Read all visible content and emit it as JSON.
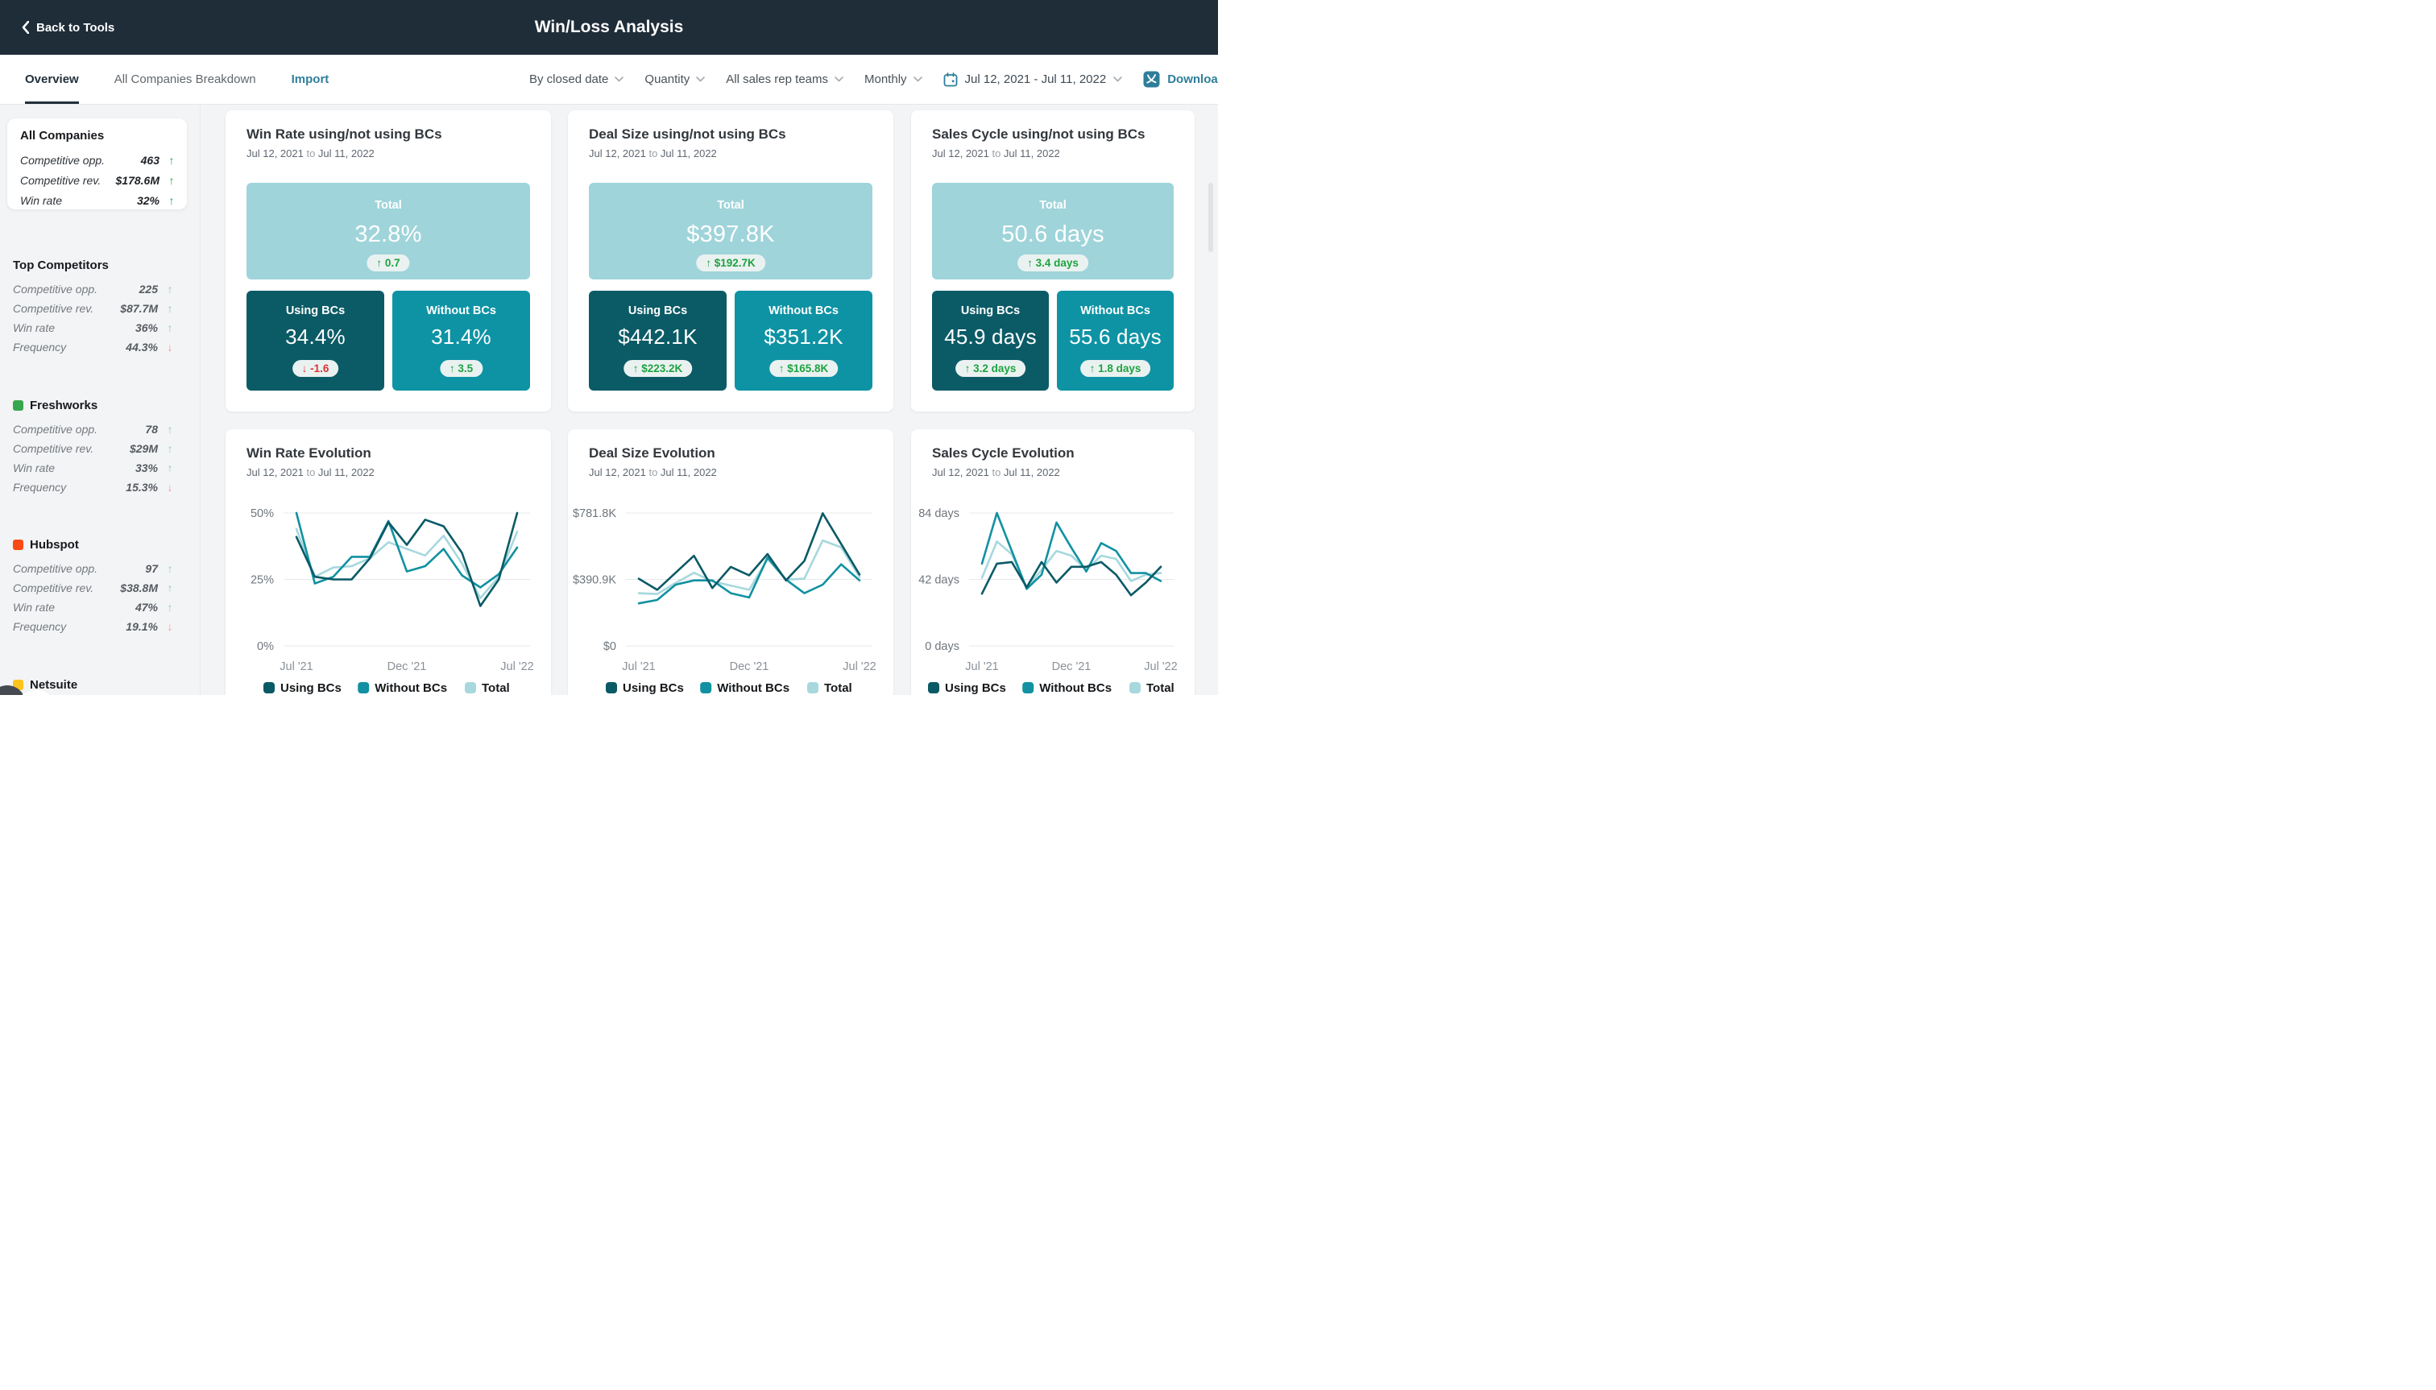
{
  "header": {
    "back_label": "Back to Tools",
    "title": "Win/Loss Analysis"
  },
  "toolbar": {
    "tabs": [
      {
        "label": "Overview",
        "active": true
      },
      {
        "label": "All Companies Breakdown",
        "active": false
      }
    ],
    "import_label": "Import",
    "dropdowns": [
      {
        "label": "By closed date"
      },
      {
        "label": "Quantity"
      },
      {
        "label": "All sales rep teams"
      },
      {
        "label": "Monthly"
      }
    ],
    "date_range": "Jul 12, 2021 - Jul 11, 2022",
    "download_label": "Download"
  },
  "sidebar": {
    "sections": [
      {
        "title": "All Companies",
        "card": true,
        "rows": [
          {
            "label": "Competitive opp.",
            "value": "463",
            "trend": "up",
            "trend_color": "#2aa34c"
          },
          {
            "label": "Competitive rev.",
            "value": "$178.6M",
            "trend": "up",
            "trend_color": "#2aa34c"
          },
          {
            "label": "Win rate",
            "value": "32%",
            "trend": "up",
            "trend_color": "#2aa34c"
          }
        ]
      },
      {
        "title": "Top Competitors",
        "card": false,
        "rows": [
          {
            "label": "Competitive opp.",
            "value": "225",
            "trend": "up",
            "trend_color": "#8ed3a1"
          },
          {
            "label": "Competitive rev.",
            "value": "$87.7M",
            "trend": "up",
            "trend_color": "#8ed3a1"
          },
          {
            "label": "Win rate",
            "value": "36%",
            "trend": "up",
            "trend_color": "#8ed3a1"
          },
          {
            "label": "Frequency",
            "value": "44.3%",
            "trend": "down",
            "trend_color": "#f29b90"
          }
        ]
      },
      {
        "title": "Freshworks",
        "card": false,
        "swatch": "#37a74f",
        "rows": [
          {
            "label": "Competitive opp.",
            "value": "78",
            "trend": "up",
            "trend_color": "#8ed3a1"
          },
          {
            "label": "Competitive rev.",
            "value": "$29M",
            "trend": "up",
            "trend_color": "#8ed3a1"
          },
          {
            "label": "Win rate",
            "value": "33%",
            "trend": "up",
            "trend_color": "#8ed3a1"
          },
          {
            "label": "Frequency",
            "value": "15.3%",
            "trend": "down",
            "trend_color": "#f29b90"
          }
        ]
      },
      {
        "title": "Hubspot",
        "card": false,
        "swatch": "#fb4a16",
        "rows": [
          {
            "label": "Competitive opp.",
            "value": "97",
            "trend": "up",
            "trend_color": "#8ed3a1"
          },
          {
            "label": "Competitive rev.",
            "value": "$38.8M",
            "trend": "up",
            "trend_color": "#8ed3a1"
          },
          {
            "label": "Win rate",
            "value": "47%",
            "trend": "up",
            "trend_color": "#8ed3a1"
          },
          {
            "label": "Frequency",
            "value": "19.1%",
            "trend": "down",
            "trend_color": "#f29b90"
          }
        ]
      },
      {
        "title": "Netsuite",
        "card": false,
        "swatch": "#fcc41b",
        "rows": []
      }
    ]
  },
  "metric_cards": [
    {
      "title": "Win Rate using/not using BCs",
      "range_from": "Jul 12, 2021",
      "range_sep": "to",
      "range_to": "Jul 11, 2022",
      "total": {
        "label": "Total",
        "value": "32.8%",
        "badge": "0.7",
        "dir": "up"
      },
      "using": {
        "label": "Using BCs",
        "value": "34.4%",
        "badge": "-1.6",
        "dir": "down"
      },
      "without": {
        "label": "Without BCs",
        "value": "31.4%",
        "badge": "3.5",
        "dir": "up"
      }
    },
    {
      "title": "Deal Size using/not using BCs",
      "range_from": "Jul 12, 2021",
      "range_sep": "to",
      "range_to": "Jul 11, 2022",
      "total": {
        "label": "Total",
        "value": "$397.8K",
        "badge": "$192.7K",
        "dir": "up"
      },
      "using": {
        "label": "Using BCs",
        "value": "$442.1K",
        "badge": "$223.2K",
        "dir": "up"
      },
      "without": {
        "label": "Without BCs",
        "value": "$351.2K",
        "badge": "$165.8K",
        "dir": "up"
      }
    },
    {
      "title": "Sales Cycle using/not using BCs",
      "range_from": "Jul 12, 2021",
      "range_sep": "to",
      "range_to": "Jul 11, 2022",
      "total": {
        "label": "Total",
        "value": "50.6 days",
        "badge": "3.4 days",
        "dir": "up"
      },
      "using": {
        "label": "Using BCs",
        "value": "45.9 days",
        "badge": "3.2 days",
        "dir": "up"
      },
      "without": {
        "label": "Without BCs",
        "value": "55.6 days",
        "badge": "1.8 days",
        "dir": "up"
      }
    }
  ],
  "chart_data": [
    {
      "type": "line",
      "title": "Win Rate Evolution",
      "range_from": "Jul 12, 2021",
      "range_sep": "to",
      "range_to": "Jul 11, 2022",
      "x_categories": [
        "Jul '21",
        "Aug '21",
        "Sep '21",
        "Oct '21",
        "Nov '21",
        "Dec '21",
        "Jan '22",
        "Feb '22",
        "Mar '22",
        "Apr '22",
        "May '22",
        "Jun '22",
        "Jul '22"
      ],
      "x_tick_labels": [
        "Jul '21",
        "Dec '21",
        "Jul '22"
      ],
      "ylim": [
        0,
        50
      ],
      "grid": true,
      "legend_position": "bottom",
      "y_ticks": [
        {
          "value": 0,
          "label": "0%"
        },
        {
          "value": 25,
          "label": "25%"
        },
        {
          "value": 50,
          "label": "50%"
        }
      ],
      "series": [
        {
          "name": "Using BCs",
          "color": "#0a5a66",
          "values": [
            41,
            26,
            25,
            25,
            33,
            46.5,
            38,
            47.5,
            45,
            35,
            15,
            25,
            50
          ]
        },
        {
          "name": "Without BCs",
          "color": "#1191a1",
          "values": [
            50,
            23.5,
            26,
            33.5,
            33.5,
            47,
            28,
            30,
            36.5,
            26.5,
            22,
            27,
            37
          ]
        },
        {
          "name": "Total",
          "color": "#a7d8de",
          "values": [
            44,
            26,
            29.5,
            30,
            33,
            39,
            36.5,
            34,
            41.5,
            31,
            18,
            26,
            43
          ]
        }
      ]
    },
    {
      "type": "line",
      "title": "Deal Size Evolution",
      "range_from": "Jul 12, 2021",
      "range_sep": "to",
      "range_to": "Jul 11, 2022",
      "x_categories": [
        "Jul '21",
        "Aug '21",
        "Sep '21",
        "Oct '21",
        "Nov '21",
        "Dec '21",
        "Jan '22",
        "Feb '22",
        "Mar '22",
        "Apr '22",
        "May '22",
        "Jun '22",
        "Jul '22"
      ],
      "x_tick_labels": [
        "Jul '21",
        "Dec '21",
        "Jul '22"
      ],
      "ylim": [
        0,
        781.8
      ],
      "grid": true,
      "legend_position": "bottom",
      "y_ticks": [
        {
          "value": 0,
          "label": "$0"
        },
        {
          "value": 390.9,
          "label": "$390.9K"
        },
        {
          "value": 781.8,
          "label": "$781.8K"
        }
      ],
      "unit": "K$",
      "series": [
        {
          "name": "Using BCs",
          "color": "#0a5a66",
          "values": [
            395,
            330,
            430,
            530,
            340,
            465,
            415,
            540,
            385,
            500,
            780,
            600,
            420
          ]
        },
        {
          "name": "Without BCs",
          "color": "#1191a1",
          "values": [
            250,
            270,
            360,
            385,
            385,
            310,
            285,
            520,
            390,
            310,
            360,
            480,
            385
          ]
        },
        {
          "name": "Total",
          "color": "#a7d8de",
          "values": [
            310,
            305,
            370,
            430,
            380,
            355,
            330,
            510,
            390,
            395,
            620,
            580,
            405
          ]
        }
      ]
    },
    {
      "type": "line",
      "title": "Sales Cycle Evolution",
      "range_from": "Jul 12, 2021",
      "range_sep": "to",
      "range_to": "Jul 11, 2022",
      "x_categories": [
        "Jul '21",
        "Aug '21",
        "Sep '21",
        "Oct '21",
        "Nov '21",
        "Dec '21",
        "Jan '22",
        "Feb '22",
        "Mar '22",
        "Apr '22",
        "May '22",
        "Jun '22",
        "Jul '22"
      ],
      "x_tick_labels": [
        "Jul '21",
        "Dec '21",
        "Jul '22"
      ],
      "ylim": [
        0,
        84
      ],
      "grid": true,
      "legend_position": "bottom",
      "y_ticks": [
        {
          "value": 0,
          "label": "0 days"
        },
        {
          "value": 42,
          "label": "42 days"
        },
        {
          "value": 84,
          "label": "84 days"
        }
      ],
      "unit": "days",
      "series": [
        {
          "name": "Using BCs",
          "color": "#0a5a66",
          "values": [
            33,
            52,
            53,
            37,
            53,
            40,
            50,
            50,
            53,
            45,
            32,
            40,
            50
          ]
        },
        {
          "name": "Without BCs",
          "color": "#1191a1",
          "values": [
            52,
            84,
            60,
            36,
            45,
            78,
            62,
            47,
            65,
            60,
            46,
            46,
            41
          ]
        },
        {
          "name": "Total",
          "color": "#a7d8de",
          "values": [
            43,
            66,
            58,
            37,
            48,
            60,
            57,
            48,
            57,
            55,
            41,
            45,
            46
          ]
        }
      ]
    }
  ],
  "legend": [
    "Using BCs",
    "Without BCs",
    "Total"
  ],
  "colors": {
    "header_bg": "#1f2d39",
    "accent_teal": "#2e7e9a",
    "tile_total": "#9fd4da",
    "tile_using": "#0b5b66",
    "tile_without": "#0e93a4",
    "badge_green": "#1ea23f",
    "badge_red": "#e03232",
    "series_using": "#0a5a66",
    "series_without": "#1191a1",
    "series_total": "#a7d8de"
  }
}
